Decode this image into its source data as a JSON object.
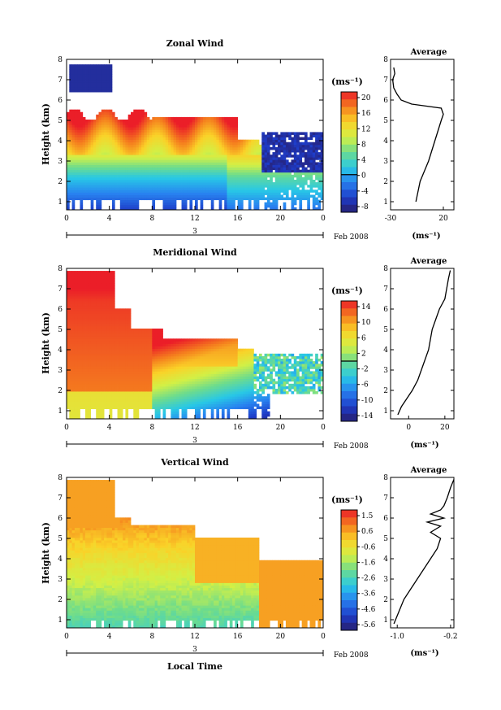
{
  "figure": {
    "date_label": "Feb 2008",
    "day_label": "3",
    "colorbar_unit": "(ms⁻¹)",
    "avg_title": "Average",
    "avg_unit": "(ms⁻¹)",
    "xlabel": "Local Time",
    "ylabel": "Height (km)"
  },
  "chart_data": [
    {
      "type": "heatmap",
      "title": "Zonal Wind",
      "xlabel": "",
      "ylabel": "Height (km)",
      "x_ticks": [
        "0",
        "4",
        "8",
        "12",
        "16",
        "20",
        "0"
      ],
      "xlim": [
        0,
        24
      ],
      "y_ticks": [
        "1",
        "2",
        "3",
        "4",
        "5",
        "6",
        "7",
        "8"
      ],
      "ylim": [
        0.6,
        8
      ],
      "colorbar": {
        "labels": [
          "20",
          "16",
          "12",
          "8",
          "4",
          "0",
          "-4",
          "-8"
        ],
        "range": [
          -10,
          22
        ],
        "zero_line": 0
      },
      "contour_level": 0,
      "field_description": "strong westerly (18-22 ms-1) 3.5-5.5 km from 0-18 LT, weak/negative below 2 km, negative (-6 to -10) above 6.5 km near 1-4 LT and 3-4 km after 18 LT",
      "average_profile": {
        "xlim": [
          -30,
          30
        ],
        "x_ticks": [
          "-30",
          "20"
        ],
        "height": [
          1.0,
          1.5,
          2.0,
          2.5,
          3.0,
          3.5,
          4.0,
          4.5,
          5.0,
          5.3,
          5.6,
          5.8,
          6.0,
          6.3,
          6.6,
          7.0,
          7.3,
          7.6
        ],
        "value": [
          -6,
          -4,
          -2,
          2,
          6,
          9,
          12,
          15,
          18,
          20,
          18,
          -10,
          -20,
          -24,
          -27,
          -28,
          -26,
          -27
        ]
      }
    },
    {
      "type": "heatmap",
      "title": "Meridional Wind",
      "xlabel": "",
      "ylabel": "Height (km)",
      "x_ticks": [
        "0",
        "4",
        "8",
        "12",
        "16",
        "20",
        "0"
      ],
      "xlim": [
        0,
        24
      ],
      "y_ticks": [
        "1",
        "2",
        "3",
        "4",
        "5",
        "6",
        "7",
        "8"
      ],
      "ylim": [
        0.6,
        8
      ],
      "colorbar": {
        "labels": [
          "14",
          "10",
          "6",
          "2",
          "-2",
          "-6",
          "-10",
          "-14"
        ],
        "range": [
          -16,
          16
        ],
        "zero_line": 0
      },
      "contour_level": 0,
      "field_description": "strong southerly (10-16 ms-1) above 3 km 0-16 LT, decreasing downward to negative (-6 to -14) below 2 km after 10 LT",
      "average_profile": {
        "xlim": [
          -10,
          25
        ],
        "x_ticks": [
          "0",
          "20"
        ],
        "height": [
          0.8,
          1.2,
          1.6,
          2.0,
          2.5,
          3.0,
          3.5,
          4.0,
          4.5,
          5.0,
          5.5,
          6.0,
          6.5,
          7.0,
          7.5,
          7.9
        ],
        "value": [
          -6,
          -4,
          -1,
          2,
          5,
          7,
          9,
          11,
          12,
          13,
          15,
          17,
          20,
          21,
          22,
          23
        ]
      }
    },
    {
      "type": "heatmap",
      "title": "Vertical Wind",
      "xlabel": "Local Time",
      "ylabel": "Height (km)",
      "x_ticks": [
        "0",
        "4",
        "8",
        "12",
        "16",
        "20",
        "0"
      ],
      "xlim": [
        0,
        24
      ],
      "y_ticks": [
        "1",
        "2",
        "3",
        "4",
        "5",
        "6",
        "7",
        "8"
      ],
      "ylim": [
        0.6,
        8
      ],
      "colorbar": {
        "labels": [
          "1.5",
          "0.6",
          "-0.6",
          "-1.6",
          "-2.6",
          "-3.6",
          "-4.6",
          "-5.6"
        ],
        "range": [
          -6,
          2
        ]
      },
      "field_description": "mostly -0.2 to 0.6 ms-1 above 3 km, -1.6 to -3.0 in lower layers before 17 LT, near 0.5 after 18 LT",
      "average_profile": {
        "xlim": [
          -1.1,
          -0.15
        ],
        "x_ticks": [
          "-1.0",
          "-0.2"
        ],
        "height": [
          0.8,
          1.2,
          1.6,
          2.0,
          2.5,
          3.0,
          3.5,
          4.0,
          4.5,
          5.0,
          5.3,
          5.6,
          5.8,
          6.0,
          6.2,
          6.4,
          6.6,
          7.0,
          7.5,
          7.9
        ],
        "value": [
          -1.05,
          -1.0,
          -0.95,
          -0.9,
          -0.8,
          -0.7,
          -0.6,
          -0.5,
          -0.4,
          -0.35,
          -0.5,
          -0.35,
          -0.55,
          -0.3,
          -0.5,
          -0.35,
          -0.3,
          -0.25,
          -0.2,
          -0.15
        ]
      }
    }
  ]
}
